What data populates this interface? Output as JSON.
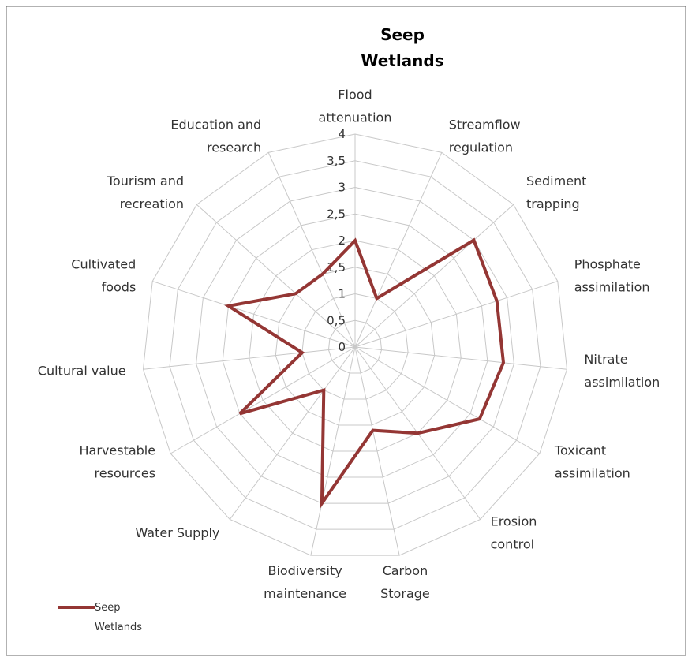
{
  "chart_data": {
    "type": "radar",
    "title": "Seep\nWetlands",
    "categories": [
      "Flood\nattenuation",
      "Streamflow\nregulation",
      "Sediment\ntrapping",
      "Phosphate\nassimilation",
      "Nitrate\nassimilation",
      "Toxicant\nassimilation",
      "Erosion\ncontrol",
      "Carbon\nStorage",
      "Biodiversity\nmaintenance",
      "Water Supply",
      "Harvestable\nresources",
      "Cultural value",
      "Cultivated\nfoods",
      "Tourism and\nrecreation",
      "Education and\nresearch"
    ],
    "series": [
      {
        "name": "Seep\nWetlands",
        "color": "#943634",
        "values": [
          2,
          1,
          3,
          2.8,
          2.8,
          2.7,
          2,
          1.6,
          3,
          1,
          2.5,
          1,
          2.5,
          1.5,
          1.5
        ]
      }
    ],
    "ylim": [
      0,
      4
    ],
    "yticks": [
      0,
      {
        "value": 0.5,
        "label": "0,5"
      },
      1,
      {
        "value": 1.5,
        "label": "1,5"
      },
      2,
      {
        "value": 2.5,
        "label": "2,5"
      },
      3,
      {
        "value": 3.5,
        "label": "3,5"
      },
      4
    ],
    "grid": true,
    "legend": "bottom-left"
  }
}
